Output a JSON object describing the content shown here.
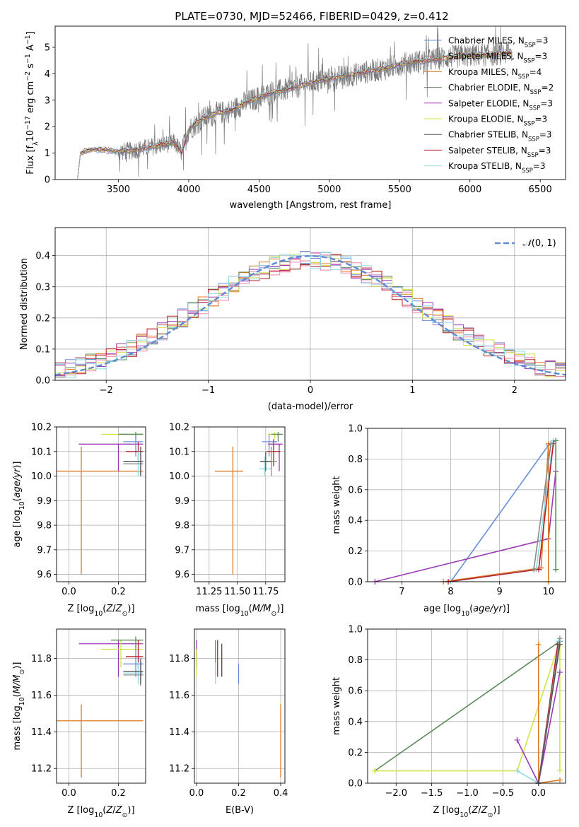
{
  "figure": {
    "title": "PLATE=0730, MJD=52466, FIBERID=0429, z=0.412"
  },
  "models": [
    {
      "name": "Chabrier MILES, N_SSP=3",
      "base": "Chabrier MILES, N",
      "sub": "SSP",
      "tail": "=3",
      "color": "#6a8fd8"
    },
    {
      "name": "Salpeter MILES, N_SSP=3",
      "base": "Salpeter MILES, N",
      "sub": "SSP",
      "tail": "=3",
      "color": "#8b8b8b"
    },
    {
      "name": "Kroupa MILES, N_SSP=4",
      "base": "Kroupa MILES, N",
      "sub": "SSP",
      "tail": "=4",
      "color": "#e07a22"
    },
    {
      "name": "Chabrier ELODIE, N_SSP=2",
      "base": "Chabrier ELODIE, N",
      "sub": "SSP",
      "tail": "=2",
      "color": "#5b8a5b"
    },
    {
      "name": "Salpeter ELODIE, N_SSP=3",
      "base": "Salpeter ELODIE, N",
      "sub": "SSP",
      "tail": "=3",
      "color": "#9a3bb5"
    },
    {
      "name": "Kroupa ELODIE, N_SSP=3",
      "base": "Kroupa ELODIE, N",
      "sub": "SSP",
      "tail": "=3",
      "color": "#d4e34a"
    },
    {
      "name": "Chabrier STELIB, N_SSP=3",
      "base": "Chabrier STELIB, N",
      "sub": "SSP",
      "tail": "=3",
      "color": "#555555"
    },
    {
      "name": "Salpeter STELIB, N_SSP=3",
      "base": "Salpeter STELIB, N",
      "sub": "SSP",
      "tail": "=3",
      "color": "#b8202a"
    },
    {
      "name": "Kroupa STELIB, N_SSP=3",
      "base": "Kroupa STELIB, N",
      "sub": "SSP",
      "tail": "=3",
      "color": "#8fd8e8"
    }
  ],
  "chart_data": [
    {
      "id": "spectrum",
      "type": "line",
      "xlabel": "wavelength [Angstrom, rest frame]",
      "ylabel": "Flux [f_λ 10^-17 erg cm^-2 s^-1 A^-1]",
      "xlim": [
        3050,
        6680
      ],
      "ylim": [
        0,
        5.8
      ],
      "xticks": [
        "3500",
        "4000",
        "4500",
        "5000",
        "5500",
        "6000",
        "6500"
      ],
      "yticks": [
        "0",
        "1",
        "2",
        "3",
        "4",
        "5"
      ],
      "grid": false,
      "legend": "top-right",
      "model_curve": [
        [
          3210,
          0
        ],
        [
          3230,
          1.0
        ],
        [
          3300,
          1.15
        ],
        [
          3400,
          1.12
        ],
        [
          3500,
          1.05
        ],
        [
          3600,
          1.1
        ],
        [
          3700,
          1.2
        ],
        [
          3800,
          1.3
        ],
        [
          3900,
          1.4
        ],
        [
          3950,
          1.0
        ],
        [
          4000,
          1.9
        ],
        [
          4100,
          2.3
        ],
        [
          4200,
          2.5
        ],
        [
          4300,
          2.6
        ],
        [
          4400,
          2.9
        ],
        [
          4500,
          3.1
        ],
        [
          4600,
          3.3
        ],
        [
          4700,
          3.4
        ],
        [
          4800,
          3.55
        ],
        [
          4900,
          3.7
        ],
        [
          5000,
          3.8
        ],
        [
          5100,
          3.9
        ],
        [
          5200,
          4.0
        ],
        [
          5300,
          4.1
        ],
        [
          5400,
          4.2
        ],
        [
          5500,
          4.35
        ],
        [
          5600,
          4.45
        ],
        [
          5700,
          4.5
        ],
        [
          5800,
          4.6
        ],
        [
          5900,
          4.65
        ],
        [
          6000,
          4.7
        ],
        [
          6100,
          4.7
        ],
        [
          6200,
          4.75
        ],
        [
          6300,
          4.8
        ]
      ],
      "data_range": [
        3210,
        6300
      ]
    },
    {
      "id": "residuals",
      "type": "histogram",
      "xlabel": "(data-model)/error",
      "ylabel": "Normed distribution",
      "xlim": [
        -2.5,
        2.5
      ],
      "ylim": [
        0,
        0.49
      ],
      "xticks": [
        "−2",
        "−1",
        "0",
        "1",
        "2"
      ],
      "yticks": [
        "0.0",
        "0.1",
        "0.2",
        "0.3",
        "0.4"
      ],
      "grid": true,
      "legend": "top-right",
      "reference_label": "N(0,1)",
      "bin_width": 0.1,
      "bin_start": -2.5
    },
    {
      "id": "age_vs_Z",
      "type": "errorbar",
      "xlabel": "Z [log10(Z/Z⊙)]",
      "ylabel": "age [log10(age/yr)]",
      "xlim": [
        -0.05,
        0.31
      ],
      "ylim": [
        9.57,
        10.2
      ],
      "xticks": [
        "0.0",
        "0.2"
      ],
      "yticks": [
        "9.6",
        "9.7",
        "9.8",
        "9.9",
        "10.0",
        "10.1",
        "10.2"
      ],
      "grid": true,
      "points": [
        {
          "m": 2,
          "x": 0.05,
          "y": 10.02,
          "xlo": -0.05,
          "xhi": 0.3,
          "ylo": 9.6,
          "yhi": 10.12
        },
        {
          "m": 4,
          "x": 0.2,
          "y": 10.13,
          "xlo": 0.04,
          "xhi": 0.3,
          "ylo": 10.02,
          "yhi": 10.13
        },
        {
          "m": 5,
          "x": 0.21,
          "y": 10.17,
          "xlo": 0.13,
          "xhi": 0.3,
          "ylo": 10.17,
          "yhi": 10.17
        },
        {
          "m": 3,
          "x": 0.27,
          "y": 10.17,
          "xlo": 0.2,
          "xhi": 0.3,
          "ylo": 10.15,
          "yhi": 10.18
        },
        {
          "m": 0,
          "x": 0.27,
          "y": 10.14,
          "xlo": 0.22,
          "xhi": 0.3,
          "ylo": 10.08,
          "yhi": 10.17
        },
        {
          "m": 7,
          "x": 0.28,
          "y": 10.1,
          "xlo": 0.23,
          "xhi": 0.3,
          "ylo": 10.06,
          "yhi": 10.14
        },
        {
          "m": 8,
          "x": 0.28,
          "y": 10.05,
          "xlo": 0.23,
          "xhi": 0.3,
          "ylo": 10.0,
          "yhi": 10.1
        },
        {
          "m": 1,
          "x": 0.29,
          "y": 10.05,
          "xlo": 0.22,
          "xhi": 0.3,
          "ylo": 10.0,
          "yhi": 10.1
        },
        {
          "m": 6,
          "x": 0.29,
          "y": 10.06,
          "xlo": 0.22,
          "xhi": 0.3,
          "ylo": 10.0,
          "yhi": 10.12
        }
      ]
    },
    {
      "id": "age_vs_mass",
      "type": "errorbar",
      "xlabel": "mass [log10(M/M⊙)]",
      "ylabel": "",
      "xlim": [
        11.12,
        11.92
      ],
      "ylim": [
        9.57,
        10.2
      ],
      "xticks": [
        "11.25",
        "11.50",
        "11.75"
      ],
      "yticks": [
        "9.6",
        "9.7",
        "9.8",
        "9.9",
        "10.0",
        "10.1",
        "10.2"
      ],
      "grid": true,
      "points": [
        {
          "m": 2,
          "x": 11.46,
          "y": 10.02,
          "xlo": 11.3,
          "xhi": 11.55,
          "ylo": 9.6,
          "yhi": 10.12
        },
        {
          "m": 4,
          "x": 11.87,
          "y": 10.13,
          "xlo": 11.77,
          "xhi": 11.9,
          "ylo": 10.02,
          "yhi": 10.13
        },
        {
          "m": 5,
          "x": 11.83,
          "y": 10.17,
          "xlo": 11.77,
          "xhi": 11.9,
          "ylo": 10.15,
          "yhi": 10.18
        },
        {
          "m": 3,
          "x": 11.86,
          "y": 10.17,
          "xlo": 11.8,
          "xhi": 11.9,
          "ylo": 10.14,
          "yhi": 10.18
        },
        {
          "m": 0,
          "x": 11.78,
          "y": 10.14,
          "xlo": 11.72,
          "xhi": 11.85,
          "ylo": 10.08,
          "yhi": 10.17
        },
        {
          "m": 7,
          "x": 11.82,
          "y": 10.1,
          "xlo": 11.76,
          "xhi": 11.88,
          "ylo": 10.04,
          "yhi": 10.15
        },
        {
          "m": 8,
          "x": 11.74,
          "y": 10.03,
          "xlo": 11.69,
          "xhi": 11.8,
          "ylo": 10.0,
          "yhi": 10.08
        },
        {
          "m": 1,
          "x": 11.8,
          "y": 10.06,
          "xlo": 11.74,
          "xhi": 11.85,
          "ylo": 10.0,
          "yhi": 10.12
        },
        {
          "m": 6,
          "x": 11.75,
          "y": 10.06,
          "xlo": 11.7,
          "xhi": 11.8,
          "ylo": 10.02,
          "yhi": 10.1
        }
      ]
    },
    {
      "id": "weight_vs_age",
      "type": "line",
      "xlabel": "age [log10(age/yr)]",
      "ylabel": "mass weight",
      "xlim": [
        6.3,
        10.35
      ],
      "ylim": [
        0,
        1
      ],
      "xticks": [
        "7",
        "8",
        "9",
        "10"
      ],
      "yticks": [
        "0.0",
        "0.2",
        "0.4",
        "0.6",
        "0.8",
        "1.0"
      ],
      "grid": true,
      "lines": [
        {
          "m": 0,
          "pts": [
            [
              8.0,
              0.0
            ],
            [
              10.0,
              0.89
            ],
            [
              10.15,
              0.92
            ]
          ]
        },
        {
          "m": 4,
          "pts": [
            [
              6.45,
              0.0
            ],
            [
              10.0,
              0.28
            ],
            [
              10.15,
              0.72
            ]
          ]
        },
        {
          "m": 2,
          "pts": [
            [
              7.85,
              0.0
            ],
            [
              9.85,
              0.09
            ],
            [
              10.0,
              0.9
            ],
            [
              10.0,
              0.0
            ]
          ]
        },
        {
          "m": 8,
          "pts": [
            [
              8.0,
              0.0
            ],
            [
              9.75,
              0.08
            ],
            [
              10.1,
              0.92
            ]
          ]
        },
        {
          "m": 7,
          "pts": [
            [
              7.95,
              0.0
            ],
            [
              9.8,
              0.08
            ],
            [
              10.1,
              0.9
            ]
          ]
        },
        {
          "m": 5,
          "pts": [
            [
              10.15,
              0.92
            ],
            [
              10.15,
              0.08
            ]
          ]
        },
        {
          "m": 3,
          "pts": [
            [
              10.15,
              0.92
            ],
            [
              10.15,
              0.08
            ]
          ]
        },
        {
          "m": 1,
          "pts": [
            [
              9.7,
              0.08
            ],
            [
              10.05,
              0.9
            ]
          ]
        }
      ]
    },
    {
      "id": "mass_vs_Z",
      "type": "errorbar",
      "xlabel": "Z [log10(Z/Z⊙)]",
      "ylabel": "mass [log10(M/M⊙)]",
      "xlim": [
        -0.05,
        0.31
      ],
      "ylim": [
        11.12,
        11.96
      ],
      "xticks": [
        "0.0",
        "0.2"
      ],
      "yticks": [
        "11.2",
        "11.4",
        "11.6",
        "11.8"
      ],
      "grid": true,
      "points": [
        {
          "m": 2,
          "x": 0.05,
          "y": 11.46,
          "xlo": -0.05,
          "xhi": 0.3,
          "ylo": 11.15,
          "yhi": 11.55
        },
        {
          "m": 4,
          "x": 0.2,
          "y": 11.88,
          "xlo": 0.04,
          "xhi": 0.3,
          "ylo": 11.7,
          "yhi": 11.9
        },
        {
          "m": 5,
          "x": 0.21,
          "y": 11.85,
          "xlo": 0.13,
          "xhi": 0.3,
          "ylo": 11.75,
          "yhi": 11.9
        },
        {
          "m": 3,
          "x": 0.27,
          "y": 11.9,
          "xlo": 0.17,
          "xhi": 0.3,
          "ylo": 11.85,
          "yhi": 11.92
        },
        {
          "m": 0,
          "x": 0.27,
          "y": 11.77,
          "xlo": 0.22,
          "xhi": 0.3,
          "ylo": 11.7,
          "yhi": 11.85
        },
        {
          "m": 7,
          "x": 0.28,
          "y": 11.81,
          "xlo": 0.23,
          "xhi": 0.3,
          "ylo": 11.75,
          "yhi": 11.9
        },
        {
          "m": 8,
          "x": 0.28,
          "y": 11.72,
          "xlo": 0.22,
          "xhi": 0.3,
          "ylo": 11.66,
          "yhi": 11.78
        },
        {
          "m": 1,
          "x": 0.29,
          "y": 11.71,
          "xlo": 0.22,
          "xhi": 0.3,
          "ylo": 11.65,
          "yhi": 11.78
        },
        {
          "m": 6,
          "x": 0.29,
          "y": 11.73,
          "xlo": 0.22,
          "xhi": 0.3,
          "ylo": 11.66,
          "yhi": 11.8
        }
      ]
    },
    {
      "id": "mass_vs_EBV",
      "type": "errorbar",
      "xlabel": "E(B-V)",
      "ylabel": "",
      "xlim": [
        -0.01,
        0.42
      ],
      "ylim": [
        11.12,
        11.96
      ],
      "xticks": [
        "0.0",
        "0.2",
        "0.4"
      ],
      "yticks": [
        "11.2",
        "11.4",
        "11.6",
        "11.8"
      ],
      "grid": true,
      "points": [
        {
          "m": 2,
          "x": 0.4,
          "y": 11.46,
          "xlo": 0.4,
          "xhi": 0.4,
          "ylo": 11.15,
          "yhi": 11.55
        },
        {
          "m": 4,
          "x": 0.0,
          "y": 11.85,
          "xlo": 0.0,
          "xhi": 0.0,
          "ylo": 11.75,
          "yhi": 11.9
        },
        {
          "m": 5,
          "x": 0.0,
          "y": 11.78,
          "xlo": 0.0,
          "xhi": 0.0,
          "ylo": 11.7,
          "yhi": 11.85
        },
        {
          "m": 3,
          "x": 0.09,
          "y": 11.82,
          "xlo": 0.09,
          "xhi": 0.09,
          "ylo": 11.7,
          "yhi": 11.9
        },
        {
          "m": 0,
          "x": 0.2,
          "y": 11.72,
          "xlo": 0.2,
          "xhi": 0.2,
          "ylo": 11.66,
          "yhi": 11.77
        },
        {
          "m": 7,
          "x": 0.1,
          "y": 11.8,
          "xlo": 0.1,
          "xhi": 0.1,
          "ylo": 11.7,
          "yhi": 11.9
        },
        {
          "m": 8,
          "x": 0.09,
          "y": 11.72,
          "xlo": 0.09,
          "xhi": 0.09,
          "ylo": 11.66,
          "yhi": 11.78
        },
        {
          "m": 1,
          "x": 0.12,
          "y": 11.77,
          "xlo": 0.12,
          "xhi": 0.12,
          "ylo": 11.7,
          "yhi": 11.85
        },
        {
          "m": 6,
          "x": 0.12,
          "y": 11.78,
          "xlo": 0.12,
          "xhi": 0.12,
          "ylo": 11.7,
          "yhi": 11.88
        }
      ]
    },
    {
      "id": "weight_vs_Z",
      "type": "line",
      "xlabel": "Z [log10(Z/Z⊙)]",
      "ylabel": "mass weight",
      "xlim": [
        -2.4,
        0.38
      ],
      "ylim": [
        0,
        1
      ],
      "xticks": [
        "−2.0",
        "−1.5",
        "−1.0",
        "−0.5",
        "0.0"
      ],
      "yticks": [
        "0.0",
        "0.2",
        "0.4",
        "0.6",
        "0.8",
        "1.0"
      ],
      "grid": true,
      "lines": [
        {
          "m": 3,
          "pts": [
            [
              -2.3,
              0.08
            ],
            [
              0.3,
              0.92
            ]
          ]
        },
        {
          "m": 5,
          "pts": [
            [
              -2.3,
              0.08
            ],
            [
              -0.3,
              0.08
            ],
            [
              0.3,
              0.92
            ],
            [
              0.3,
              0.08
            ]
          ]
        },
        {
          "m": 2,
          "pts": [
            [
              0.0,
              0.9
            ],
            [
              0.0,
              0.0
            ],
            [
              0.3,
              0.02
            ]
          ]
        },
        {
          "m": 4,
          "pts": [
            [
              -0.3,
              0.28
            ],
            [
              0.0,
              0.0
            ],
            [
              0.3,
              0.72
            ]
          ]
        },
        {
          "m": 0,
          "pts": [
            [
              0.0,
              0.0
            ],
            [
              0.3,
              0.92
            ]
          ]
        },
        {
          "m": 8,
          "pts": [
            [
              -0.3,
              0.08
            ],
            [
              0.0,
              0.0
            ],
            [
              0.28,
              0.92
            ]
          ]
        },
        {
          "m": 7,
          "pts": [
            [
              0.0,
              0.0
            ],
            [
              0.27,
              0.9
            ]
          ]
        },
        {
          "m": 1,
          "pts": [
            [
              0.0,
              0.0
            ],
            [
              0.3,
              0.94
            ]
          ]
        },
        {
          "m": 6,
          "pts": [
            [
              0.0,
              0.0
            ],
            [
              0.3,
              0.9
            ]
          ]
        }
      ]
    }
  ]
}
